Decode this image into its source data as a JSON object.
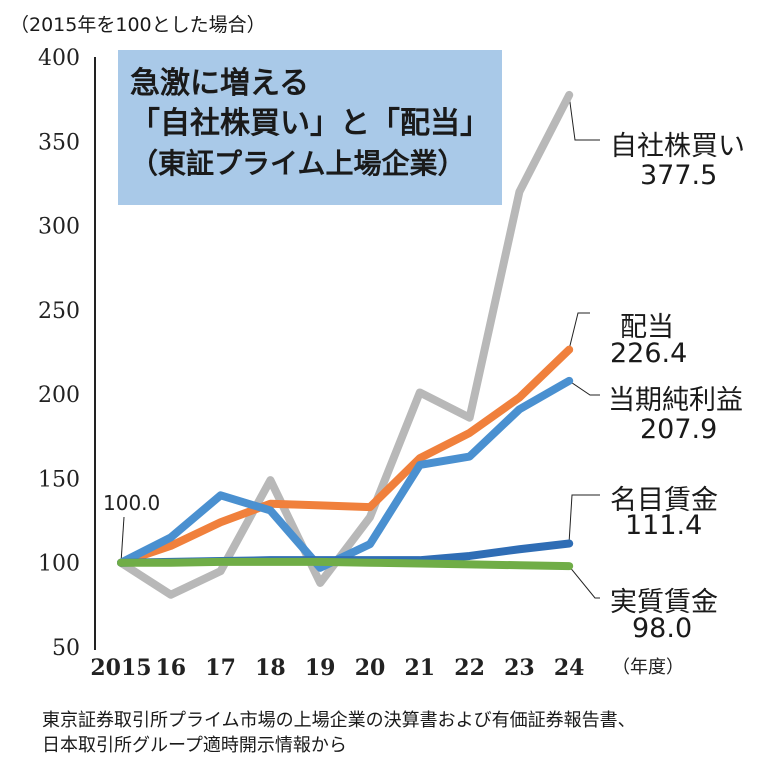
{
  "chart_data": {
    "type": "line",
    "title": "急激に増える「自社株買い」と「配当」",
    "subtitle": "（東証プライム上場企業）",
    "unit_note": "（2015年を100とした場合）",
    "xlabel": "（年度）",
    "ylabel": "",
    "categories": [
      "2015",
      "16",
      "17",
      "18",
      "19",
      "20",
      "21",
      "22",
      "23",
      "24"
    ],
    "ylim": [
      50,
      400
    ],
    "yticks": [
      400,
      350,
      300,
      250,
      200,
      150,
      100,
      50
    ],
    "grid": false,
    "start_label": "100.0",
    "series": [
      {
        "name": "自社株買い",
        "end_label": "377.5",
        "color": "#b8b8b8",
        "values": [
          100,
          81,
          95,
          149,
          88,
          127,
          201,
          186,
          320,
          377.5
        ]
      },
      {
        "name": "配当",
        "end_label": "226.4",
        "color": "#f0803c",
        "values": [
          100,
          110,
          124,
          135,
          134,
          133,
          162,
          177,
          198,
          226.4
        ]
      },
      {
        "name": "当期純利益",
        "end_label": "207.9",
        "color": "#4a90d0",
        "values": [
          100,
          115,
          140,
          131,
          97,
          111,
          158,
          163,
          191,
          207.9
        ]
      },
      {
        "name": "名目賃金",
        "end_label": "111.4",
        "color": "#2f6db5",
        "values": [
          100,
          100.5,
          101,
          101.5,
          101.5,
          101.5,
          101.5,
          104,
          108,
          111.4
        ]
      },
      {
        "name": "実質賃金",
        "end_label": "98.0",
        "color": "#70ad47",
        "values": [
          100,
          100,
          100.5,
          100.5,
          100.5,
          100,
          99.5,
          99,
          98.5,
          98.0
        ]
      }
    ]
  },
  "footer": [
    "東京証券取引所プライム市場の上場企業の決算書および有価証券報告書、",
    "日本取引所グループ適時開示情報から"
  ]
}
